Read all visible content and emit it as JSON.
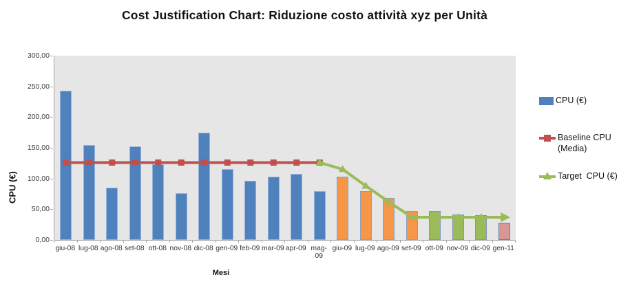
{
  "title": "Cost Justification Chart: Riduzione costo attività xyz per Unità",
  "y_axis": {
    "title": "CPU (€)",
    "tick_labels": [
      "300,00",
      "250,00",
      "200,00",
      "150,00",
      "100,00",
      "50,00",
      "0,00"
    ]
  },
  "x_axis": {
    "title": "Mesi"
  },
  "legend": [
    {
      "label": "CPU (€)",
      "marker": "bar-swatch",
      "color": "#4F81BD"
    },
    {
      "label": "Baseline CPU\n(Media)",
      "marker": "line-square",
      "color": "#C0504D"
    },
    {
      "label": "Target  CPU (€)",
      "marker": "line-triangle",
      "color": "#9BBB59"
    }
  ],
  "colors": {
    "actual_bar": "#4F81BD",
    "forecast_bar": "#F79646",
    "target_bar": "#9BBB59",
    "final_bar": "#D99694",
    "baseline_line": "#C0504D",
    "target_line": "#9BBB59",
    "plot_background": "#E6E6E6",
    "axis": "#A6A6A6"
  },
  "chart_data": {
    "type": "bar",
    "title": "Cost Justification Chart: Riduzione costo attività xyz per Unità",
    "xlabel": "Mesi",
    "ylabel": "CPU (€)",
    "ylim": [
      0,
      300
    ],
    "y_ticks": [
      300,
      250,
      200,
      150,
      100,
      50,
      0
    ],
    "grid": false,
    "legend_position": "right",
    "plot_bg": "#E6E6E6",
    "categories": [
      "giu-08",
      "lug-08",
      "ago-08",
      "set-08",
      "ott-08",
      "nov-08",
      "dic-08",
      "gen-09",
      "feb-09",
      "mar-09",
      "apr-09",
      "mag-09",
      "giu-09",
      "lug-09",
      "ago-09",
      "set-09",
      "ott-09",
      "nov-09",
      "dic-09",
      "gen-11"
    ],
    "series": [
      {
        "name": "CPU (€)",
        "type": "bar",
        "values": [
          243,
          155,
          85,
          152,
          123,
          76,
          175,
          115,
          96,
          103,
          108,
          80,
          103,
          80,
          68,
          47,
          47,
          41,
          40,
          28
        ],
        "bar_colors": [
          "#4F81BD",
          "#4F81BD",
          "#4F81BD",
          "#4F81BD",
          "#4F81BD",
          "#4F81BD",
          "#4F81BD",
          "#4F81BD",
          "#4F81BD",
          "#4F81BD",
          "#4F81BD",
          "#4F81BD",
          "#F79646",
          "#F79646",
          "#F79646",
          "#F79646",
          "#9BBB59",
          "#9BBB59",
          "#9BBB59",
          "#D99694"
        ],
        "bar_borders": [
          "#95B3D7",
          "#95B3D7",
          "#95B3D7",
          "#95B3D7",
          "#95B3D7",
          "#95B3D7",
          "#95B3D7",
          "#95B3D7",
          "#95B3D7",
          "#95B3D7",
          "#95B3D7",
          "#95B3D7",
          "#8AA0BE",
          "#8AA0BE",
          "#8AA0BE",
          "#8AA0BE",
          "#7E97B7",
          "#7E97B7",
          "#7E97B7",
          "#6080A8"
        ]
      },
      {
        "name": "Baseline CPU (Media)",
        "type": "line",
        "marker": "square",
        "color": "#C0504D",
        "start_index": 0,
        "values": [
          126,
          126,
          126,
          126,
          126,
          126,
          126,
          126,
          126,
          126,
          126,
          126
        ]
      },
      {
        "name": "Target CPU (€)",
        "type": "line",
        "marker": "triangle",
        "color": "#9BBB59",
        "start_index": 11,
        "values": [
          126,
          115,
          88,
          62,
          37,
          37,
          37,
          37,
          37
        ]
      }
    ]
  }
}
